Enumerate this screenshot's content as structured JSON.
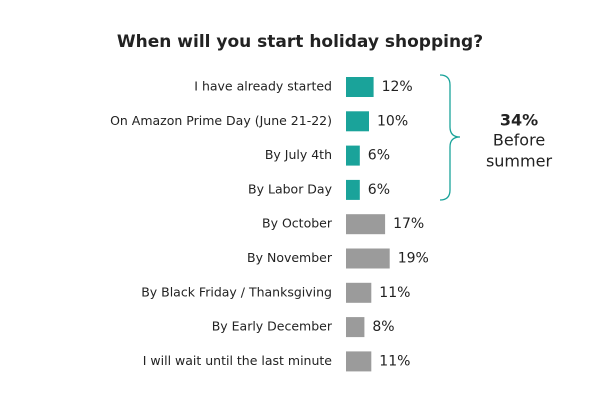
{
  "chart_data": {
    "type": "hbar",
    "title": "When will you start holiday shopping?",
    "categories": [
      "I have already started",
      "On Amazon Prime Day (June 21-22)",
      "By July 4th",
      "By Labor Day",
      "By October",
      "By November",
      "By Black Friday / Thanksgiving",
      "By Early December",
      "I will wait until the last minute"
    ],
    "values": [
      12,
      10,
      6,
      6,
      17,
      19,
      11,
      8,
      11
    ],
    "value_labels": [
      "12%",
      "10%",
      "6%",
      "6%",
      "17%",
      "19%",
      "11%",
      "8%",
      "11%"
    ],
    "colors": [
      "#1aa39a",
      "#1aa39a",
      "#1aa39a",
      "#1aa39a",
      "#9b9b9b",
      "#9b9b9b",
      "#9b9b9b",
      "#9b9b9b",
      "#9b9b9b"
    ],
    "annotation": {
      "highlight": "34%",
      "lines": [
        "Before",
        "summer"
      ],
      "color": "#1aa39a"
    }
  }
}
